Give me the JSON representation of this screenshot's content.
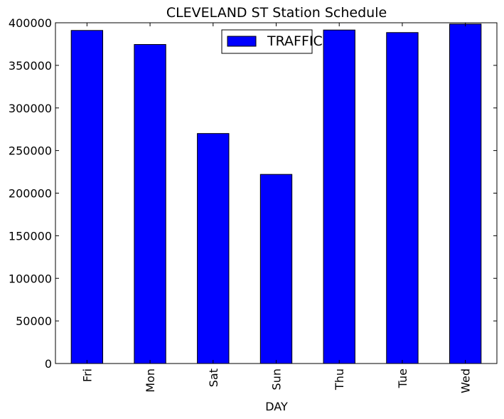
{
  "chart_data": {
    "type": "bar",
    "title": "CLEVELAND ST Station Schedule",
    "xlabel": "DAY",
    "ylabel": "",
    "categories": [
      "Fri",
      "Mon",
      "Sat",
      "Sun",
      "Thu",
      "Tue",
      "Wed"
    ],
    "series": [
      {
        "name": "TRAFFIC",
        "values": [
          391000,
          374500,
          270000,
          222000,
          391500,
          388500,
          398500
        ]
      }
    ],
    "ylim": [
      0,
      400000
    ],
    "yticks": [
      0,
      50000,
      100000,
      150000,
      200000,
      250000,
      300000,
      350000,
      400000
    ],
    "grid": false,
    "legend_position": "top-center",
    "bar_color": "#0000ff"
  }
}
